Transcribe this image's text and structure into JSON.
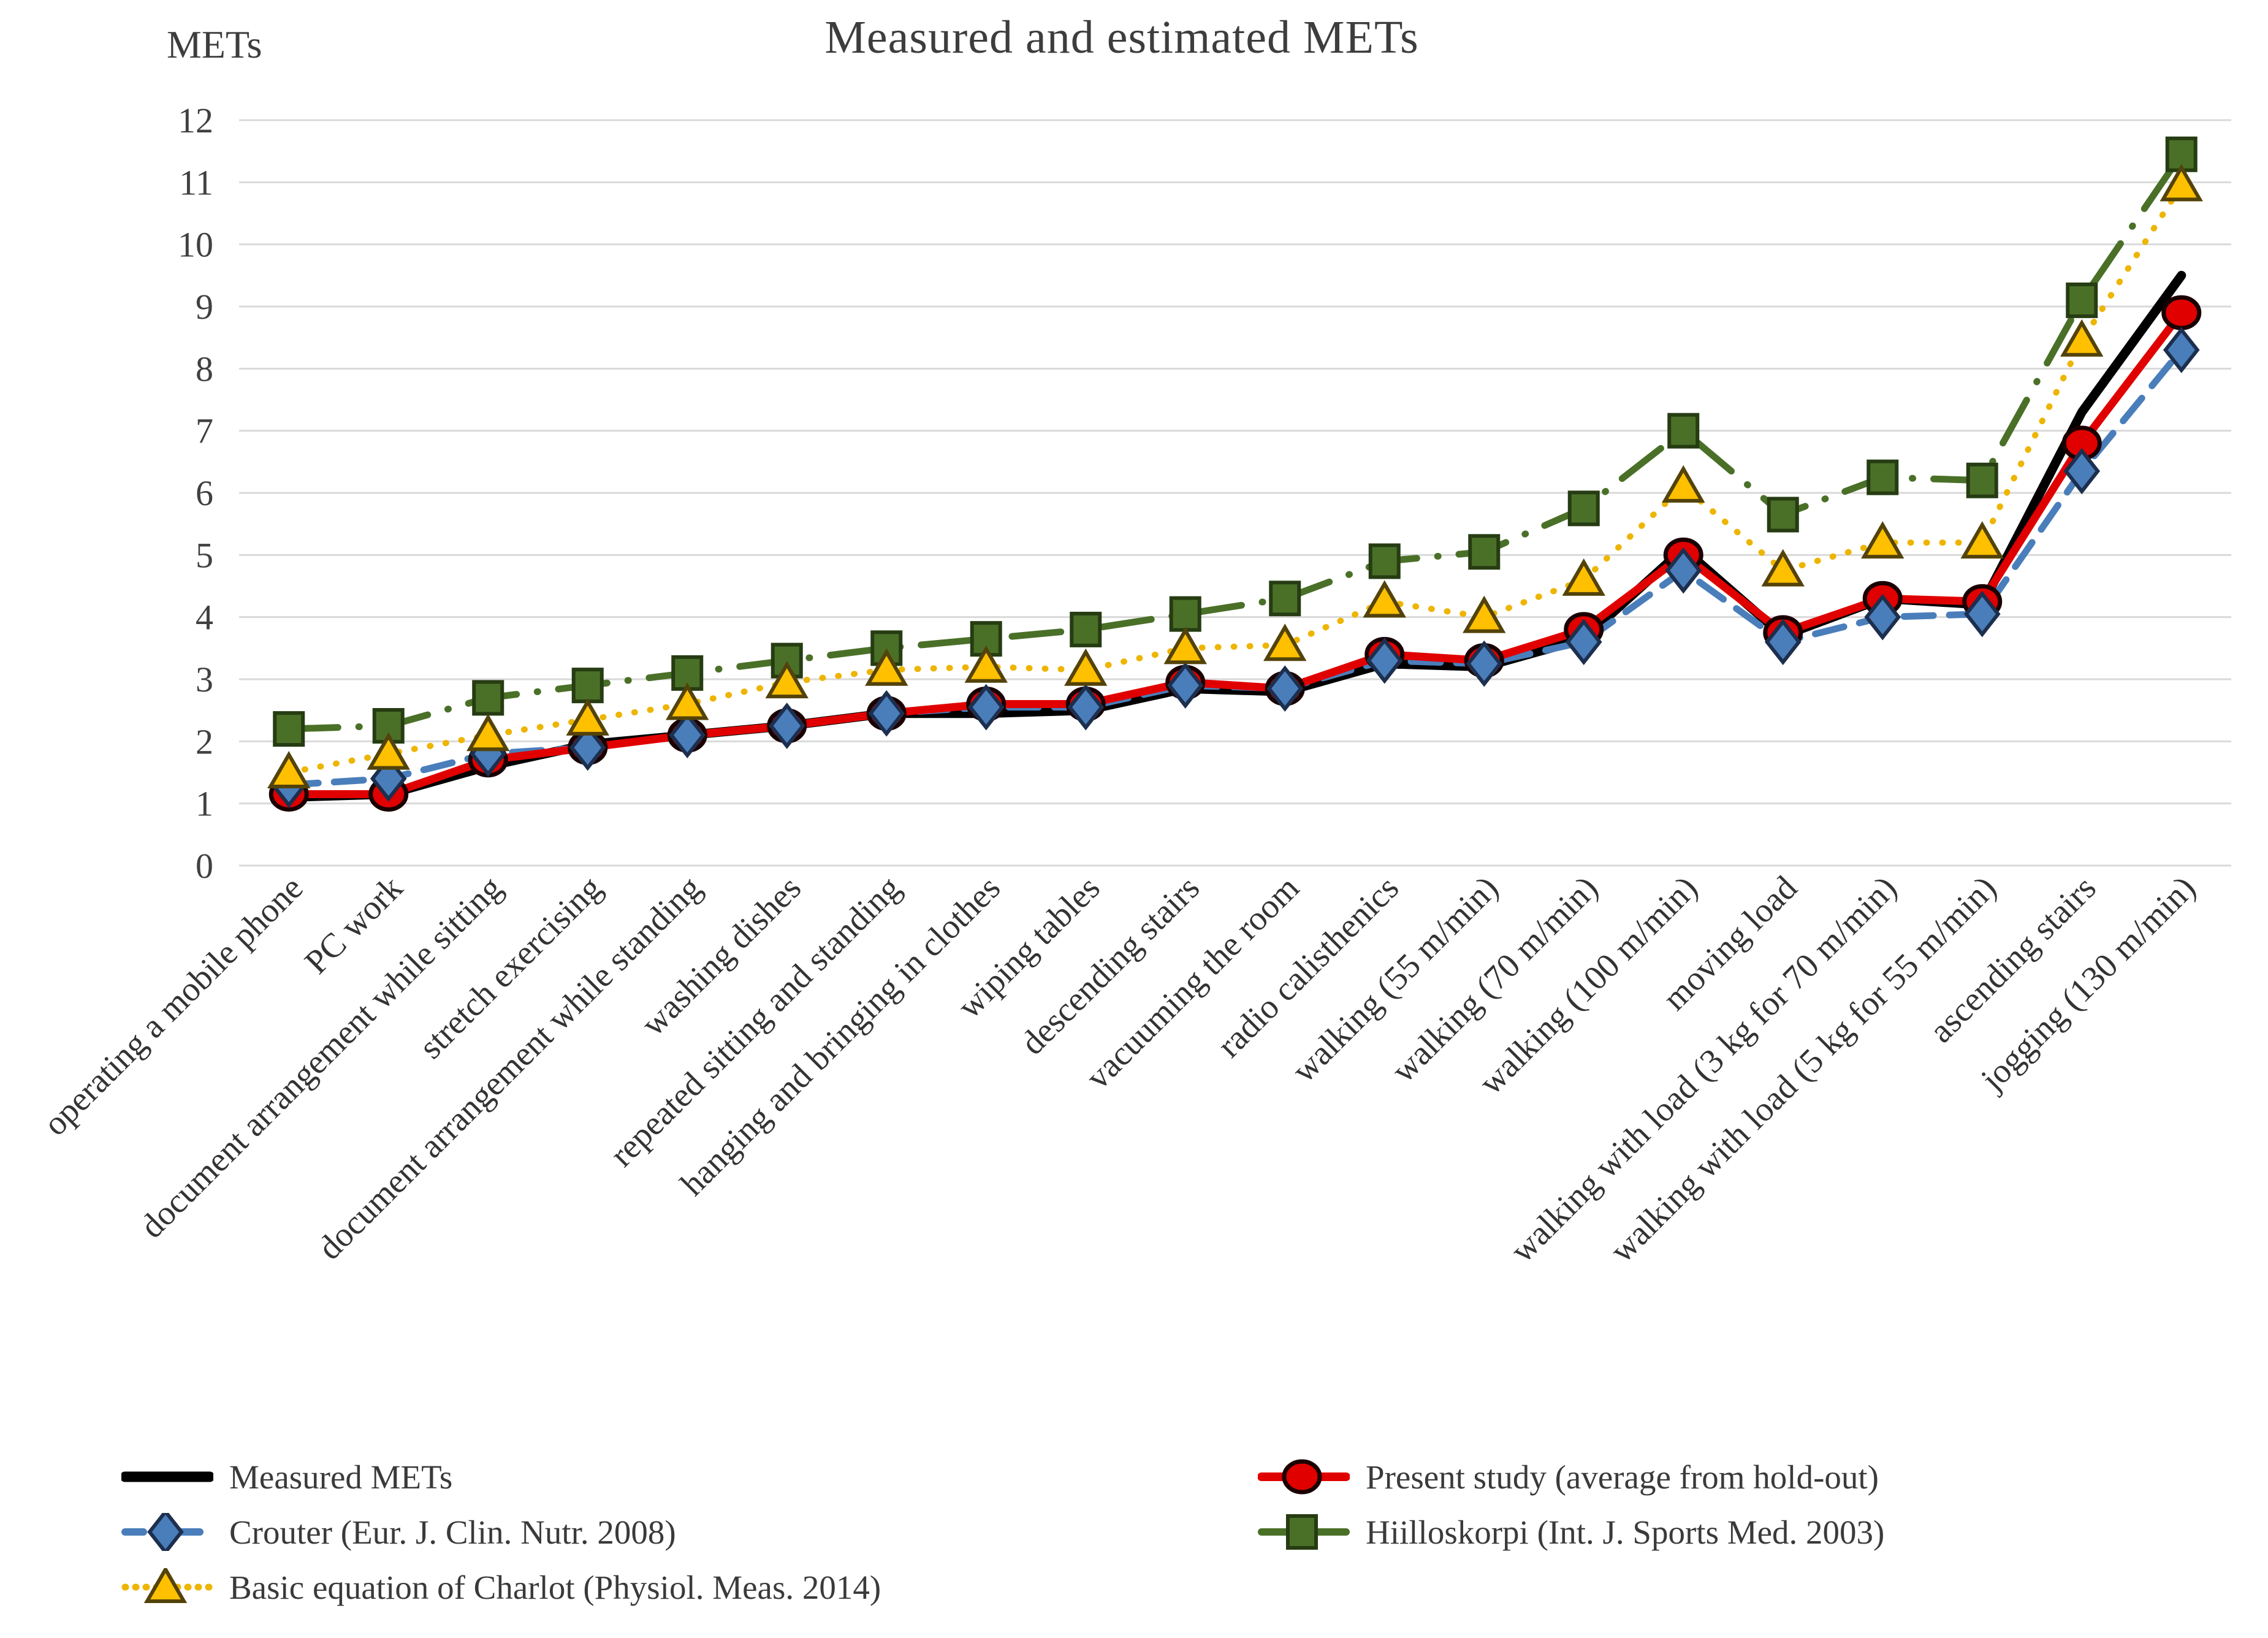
{
  "title": "Measured and estimated METs",
  "y_axis_label": "METs",
  "colors": {
    "background": "#ffffff",
    "gridline": "#d9d9d9",
    "tick_text": "#404040",
    "category_text": "#333333",
    "title_text": "#3d3d3d"
  },
  "chart_data": {
    "type": "line",
    "title": "Measured and estimated METs",
    "xlabel": "",
    "ylabel": "METs",
    "ylim": [
      0,
      12
    ],
    "y_ticks": [
      0,
      1,
      2,
      3,
      4,
      5,
      6,
      7,
      8,
      9,
      10,
      11,
      12
    ],
    "grid": true,
    "legend_position": "bottom",
    "categories": [
      "operating a mobile phone",
      "PC work",
      "document arrangement while sitting",
      "stretch exercising",
      "document arrangement while standing",
      "washing dishes",
      "repeated sitting and standing",
      "hanging and bringing in clothes",
      "wiping tables",
      "descending stairs",
      "vacuuming the room",
      "radio calisthenics",
      "walking (55 m/min)",
      "walking (70 m/min)",
      "walking (100 m/min)",
      "moving load",
      "walking with load (3 kg for 70 m/min)",
      "walking with load (5 kg for 55 m/min)",
      "ascending stairs",
      "jogging (130 m/min)"
    ],
    "series": [
      {
        "name": "Measured METs",
        "slug": "measured-mets",
        "color": "#000000",
        "line_style": "solid",
        "line_width": 15,
        "marker": "none",
        "values": [
          1.1,
          1.15,
          1.6,
          1.95,
          2.1,
          2.25,
          2.45,
          2.45,
          2.5,
          2.85,
          2.8,
          3.25,
          3.2,
          3.65,
          5.1,
          3.7,
          4.3,
          4.2,
          7.3,
          9.5
        ]
      },
      {
        "name": "Present study (average from hold-out)",
        "slug": "present-study",
        "color": "#e00000",
        "line_style": "solid",
        "line_width": 13,
        "marker": "circle",
        "marker_fill": "#e00000",
        "marker_stroke": "#1a0000",
        "values": [
          1.15,
          1.15,
          1.7,
          1.9,
          2.1,
          2.25,
          2.45,
          2.6,
          2.6,
          2.95,
          2.85,
          3.4,
          3.3,
          3.8,
          5.0,
          3.75,
          4.3,
          4.25,
          6.8,
          8.9
        ]
      },
      {
        "name": "Crouter (Eur. J. Clin. Nutr. 2008)",
        "slug": "crouter",
        "color": "#4a7ebb",
        "line_style": "dashed",
        "line_width": 11,
        "marker": "diamond",
        "marker_fill": "#4a7ebb",
        "marker_stroke": "#1d2f4e",
        "values": [
          1.3,
          1.4,
          1.8,
          1.9,
          2.1,
          2.25,
          2.45,
          2.55,
          2.55,
          2.9,
          2.85,
          3.3,
          3.25,
          3.6,
          4.75,
          3.6,
          4.0,
          4.05,
          6.35,
          8.3
        ]
      },
      {
        "name": "Hiilloskorpi (Int. J. Sports Med. 2003)",
        "slug": "hiilloskorpi",
        "color": "#4a7028",
        "line_style": "dash-dot",
        "line_width": 11,
        "marker": "square",
        "marker_fill": "#4a7028",
        "marker_stroke": "#263c12",
        "values": [
          2.2,
          2.25,
          2.7,
          2.9,
          3.1,
          3.3,
          3.5,
          3.65,
          3.8,
          4.05,
          4.3,
          4.9,
          5.05,
          5.75,
          7.0,
          5.65,
          6.25,
          6.2,
          9.1,
          11.45
        ]
      },
      {
        "name": "Basic equation of Charlot (Physiol. Meas. 2014)",
        "slug": "charlot",
        "color": "#edb500",
        "line_style": "dotted",
        "line_width": 10,
        "marker": "triangle",
        "marker_fill": "#ffc000",
        "marker_stroke": "#53430a",
        "values": [
          1.5,
          1.8,
          2.1,
          2.35,
          2.6,
          2.95,
          3.15,
          3.2,
          3.15,
          3.5,
          3.55,
          4.25,
          4.0,
          4.6,
          6.1,
          4.75,
          5.2,
          5.2,
          8.45,
          10.95
        ]
      }
    ]
  },
  "legend": {
    "columns": [
      [
        0,
        2,
        4
      ],
      [
        1,
        3
      ]
    ]
  }
}
